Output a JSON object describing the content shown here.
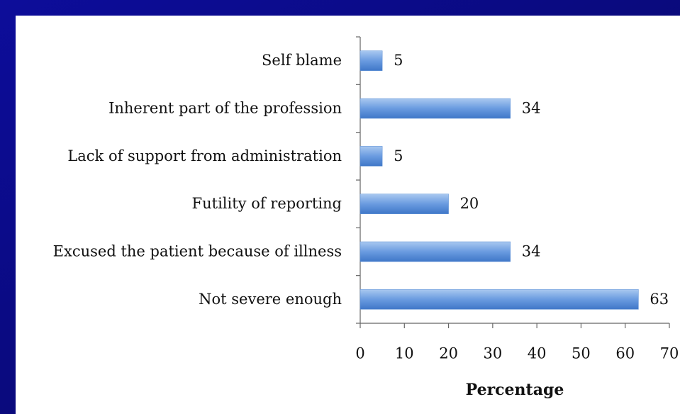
{
  "chart_data": {
    "type": "bar",
    "orientation": "horizontal",
    "categories": [
      "Self blame",
      "Inherent part of the profession",
      "Lack of support from administration",
      "Futility of reporting",
      "Excused the patient because of illness",
      "Not severe enough"
    ],
    "values": [
      5,
      34,
      5,
      20,
      34,
      63
    ],
    "color": "#5b8fd6",
    "xlabel": "Percentage",
    "xlim": [
      0,
      70
    ],
    "xticks": [
      0,
      10,
      20,
      30,
      40,
      50,
      60,
      70
    ]
  }
}
